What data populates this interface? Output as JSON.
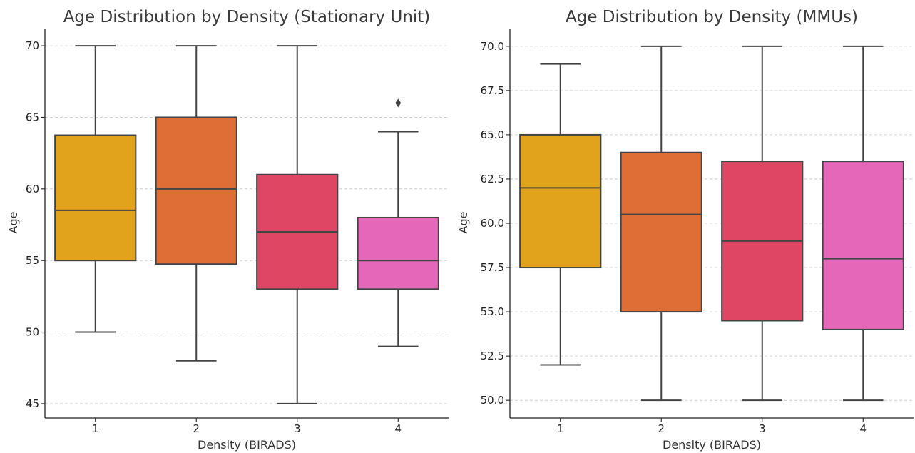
{
  "palette": [
    "#e0a31b",
    "#de6e36",
    "#df4664",
    "#e467b9"
  ],
  "chart_data": [
    {
      "id": "stationary",
      "type": "box",
      "title": "Age Distribution by Density (Stationary Unit)",
      "xlabel": "Density (BIRADS)",
      "ylabel": "Age",
      "categories": [
        "1",
        "2",
        "3",
        "4"
      ],
      "ylim": [
        44.0,
        71.2
      ],
      "yticks": [
        45,
        50,
        55,
        60,
        65,
        70
      ],
      "ytick_labels": [
        "45",
        "50",
        "55",
        "60",
        "65",
        "70"
      ],
      "grid": true,
      "boxes": [
        {
          "whislo": 50,
          "q1": 55,
          "med": 58.5,
          "q3": 63.75,
          "whishi": 70,
          "fliers": []
        },
        {
          "whislo": 48,
          "q1": 54.75,
          "med": 60,
          "q3": 65,
          "whishi": 70,
          "fliers": []
        },
        {
          "whislo": 45,
          "q1": 53,
          "med": 57,
          "q3": 61,
          "whishi": 70,
          "fliers": []
        },
        {
          "whislo": 49,
          "q1": 53,
          "med": 55,
          "q3": 58,
          "whishi": 64,
          "fliers": [
            66
          ]
        }
      ]
    },
    {
      "id": "mmus",
      "type": "box",
      "title": "Age Distribution by Density (MMUs)",
      "xlabel": "Density (BIRADS)",
      "ylabel": "Age",
      "categories": [
        "1",
        "2",
        "3",
        "4"
      ],
      "ylim": [
        49.0,
        71.0
      ],
      "yticks": [
        50.0,
        52.5,
        55.0,
        57.5,
        60.0,
        62.5,
        65.0,
        67.5,
        70.0
      ],
      "ytick_labels": [
        "50.0",
        "52.5",
        "55.0",
        "57.5",
        "60.0",
        "62.5",
        "65.0",
        "67.5",
        "70.0"
      ],
      "grid": true,
      "boxes": [
        {
          "whislo": 52,
          "q1": 57.5,
          "med": 62,
          "q3": 65,
          "whishi": 69,
          "fliers": []
        },
        {
          "whislo": 50,
          "q1": 55,
          "med": 60.5,
          "q3": 64,
          "whishi": 70,
          "fliers": []
        },
        {
          "whislo": 50,
          "q1": 54.5,
          "med": 59,
          "q3": 63.5,
          "whishi": 70,
          "fliers": []
        },
        {
          "whislo": 50,
          "q1": 54,
          "med": 58,
          "q3": 63.5,
          "whishi": 70,
          "fliers": []
        }
      ]
    }
  ]
}
